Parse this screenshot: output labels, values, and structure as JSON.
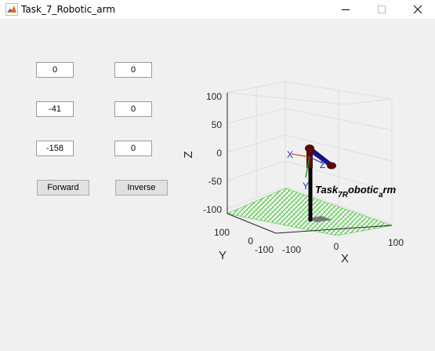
{
  "window": {
    "title": "Task_7_Robotic_arm",
    "app_icon": "matlab-icon"
  },
  "fields": {
    "col1": [
      "0",
      "-41",
      "-158"
    ],
    "col2": [
      "0",
      "0",
      "0"
    ]
  },
  "buttons": {
    "forward": "Forward",
    "inverse": "Inverse"
  },
  "plot": {
    "z_label": "Z",
    "y_label": "Y",
    "x_label": "X",
    "z_ticks": [
      "100",
      "50",
      "0",
      "-50",
      "-100"
    ],
    "y_ticks": [
      "100",
      "0",
      "-100"
    ],
    "x_ticks": [
      "-100",
      "0",
      "100"
    ],
    "frame_labels": {
      "x": "X",
      "y": "Y",
      "z": "Z"
    },
    "robot_label": {
      "base": "Task",
      "sub1": "7R",
      "mid": "obotic",
      "sub2": "a",
      "end": "rm"
    },
    "colors": {
      "link": "#0f1070",
      "joint": "#5a0a0a",
      "base": "#000000",
      "floor": "#55c24a"
    }
  }
}
